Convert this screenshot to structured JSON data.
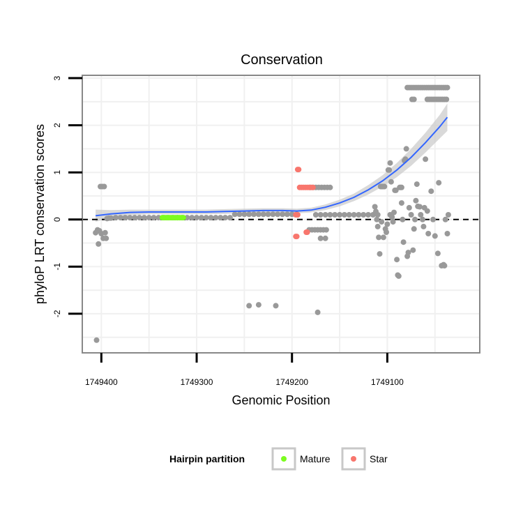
{
  "chart_data": {
    "type": "scatter",
    "title": "Conservation",
    "xlabel": "Genomic Position",
    "ylabel": "phyloP LRT conservation scores",
    "x_reversed": true,
    "xlim": [
      1749420,
      1749003
    ],
    "ylim": [
      -2.83,
      3.06
    ],
    "x_ticks": [
      1749400,
      1749300,
      1749200,
      1749100
    ],
    "x_tick_labels": [
      "1749400",
      "1749300",
      "1749200",
      "1749100"
    ],
    "y_ticks": [
      -2,
      -1,
      0,
      1,
      2,
      3
    ],
    "y_tick_labels": [
      "-2",
      "-1",
      "0",
      "1",
      "2",
      "3"
    ],
    "reference_line_y": 0,
    "colors": {
      "other": "#999999",
      "mature": "#7cfc1f",
      "star": "#f8766d",
      "smooth": "#3366ff",
      "ribbon": "#cccccc",
      "panel_border": "#888888",
      "grid": "#f0f0f0"
    },
    "legend": {
      "title": "Hairpin partition",
      "position": "bottom",
      "entries": [
        {
          "label": "Mature",
          "color": "#7cfc1f"
        },
        {
          "label": "Star",
          "color": "#f8766d"
        }
      ]
    },
    "series": [
      {
        "name": "Other",
        "points": [
          [
            1749405,
            -2.56
          ],
          [
            1749406,
            -0.28
          ],
          [
            1749404,
            -0.22
          ],
          [
            1749403,
            -0.52
          ],
          [
            1749402,
            -0.24
          ],
          [
            1749401,
            0.7
          ],
          [
            1749399,
            0.7
          ],
          [
            1749397,
            0.7
          ],
          [
            1749400,
            -0.3
          ],
          [
            1749398,
            -0.4
          ],
          [
            1749396,
            -0.28
          ],
          [
            1749395,
            -0.4
          ],
          [
            1749394,
            0.02
          ],
          [
            1749392,
            0.03
          ],
          [
            1749390,
            0.03
          ],
          [
            1749385,
            0.04
          ],
          [
            1749380,
            0.04
          ],
          [
            1749375,
            0.04
          ],
          [
            1749370,
            0.04
          ],
          [
            1749365,
            0.04
          ],
          [
            1749360,
            0.04
          ],
          [
            1749355,
            0.04
          ],
          [
            1749350,
            0.04
          ],
          [
            1749345,
            0.04
          ],
          [
            1749340,
            0.04
          ],
          [
            1749335,
            0.04
          ],
          [
            1749330,
            0.04
          ],
          [
            1749325,
            0.04
          ],
          [
            1749320,
            0.04
          ],
          [
            1749315,
            0.04
          ],
          [
            1749310,
            0.04
          ],
          [
            1749305,
            0.04
          ],
          [
            1749300,
            0.04
          ],
          [
            1749295,
            0.04
          ],
          [
            1749290,
            0.04
          ],
          [
            1749285,
            0.04
          ],
          [
            1749280,
            0.04
          ],
          [
            1749275,
            0.04
          ],
          [
            1749270,
            0.04
          ],
          [
            1749265,
            0.04
          ],
          [
            1749260,
            0.11
          ],
          [
            1749255,
            0.11
          ],
          [
            1749250,
            0.11
          ],
          [
            1749245,
            0.11
          ],
          [
            1749240,
            0.11
          ],
          [
            1749235,
            0.11
          ],
          [
            1749230,
            0.11
          ],
          [
            1749225,
            0.11
          ],
          [
            1749220,
            0.11
          ],
          [
            1749215,
            0.11
          ],
          [
            1749210,
            0.11
          ],
          [
            1749205,
            0.11
          ],
          [
            1749200,
            0.11
          ],
          [
            1749195,
            0.11
          ],
          [
            1749245,
            -1.83
          ],
          [
            1749235,
            -1.81
          ],
          [
            1749217,
            -1.83
          ],
          [
            1749173,
            -1.97
          ],
          [
            1749181,
            0.68
          ],
          [
            1749178,
            0.68
          ],
          [
            1749175,
            0.68
          ],
          [
            1749172,
            0.68
          ],
          [
            1749169,
            0.68
          ],
          [
            1749166,
            0.68
          ],
          [
            1749163,
            0.68
          ],
          [
            1749160,
            0.68
          ],
          [
            1749182,
            -0.22
          ],
          [
            1749179,
            -0.22
          ],
          [
            1749176,
            -0.22
          ],
          [
            1749173,
            -0.22
          ],
          [
            1749170,
            -0.22
          ],
          [
            1749167,
            -0.22
          ],
          [
            1749164,
            -0.22
          ],
          [
            1749170,
            -0.4
          ],
          [
            1749165,
            -0.4
          ],
          [
            1749175,
            0.1
          ],
          [
            1749170,
            0.1
          ],
          [
            1749165,
            0.1
          ],
          [
            1749160,
            0.1
          ],
          [
            1749155,
            0.1
          ],
          [
            1749150,
            0.1
          ],
          [
            1749145,
            0.1
          ],
          [
            1749140,
            0.1
          ],
          [
            1749135,
            0.1
          ],
          [
            1749130,
            0.1
          ],
          [
            1749125,
            0.1
          ],
          [
            1749120,
            0.1
          ],
          [
            1749115,
            0.1
          ],
          [
            1749110,
            0.1
          ],
          [
            1749113,
            0.27
          ],
          [
            1749112,
            0.17
          ],
          [
            1749111,
            0.0
          ],
          [
            1749110,
            -0.15
          ],
          [
            1749109,
            -0.38
          ],
          [
            1749108,
            -0.73
          ],
          [
            1749107,
            0.7
          ],
          [
            1749106,
            0.7
          ],
          [
            1749105,
            0.7
          ],
          [
            1749104,
            0.7
          ],
          [
            1749103,
            0.7
          ],
          [
            1749106,
            -0.05
          ],
          [
            1749104,
            -0.38
          ],
          [
            1749102,
            -0.2
          ],
          [
            1749101,
            -0.27
          ],
          [
            1749100,
            -0.1
          ],
          [
            1749099,
            1.05
          ],
          [
            1749098,
            1.05
          ],
          [
            1749097,
            1.2
          ],
          [
            1749097,
            0.1
          ],
          [
            1749096,
            0.8
          ],
          [
            1749095,
            0.05
          ],
          [
            1749094,
            -0.05
          ],
          [
            1749093,
            0.15
          ],
          [
            1749092,
            0.62
          ],
          [
            1749091,
            0.62
          ],
          [
            1749090,
            -0.85
          ],
          [
            1749089,
            -1.18
          ],
          [
            1749088,
            -1.2
          ],
          [
            1749087,
            0.68
          ],
          [
            1749086,
            0.68
          ],
          [
            1749085,
            0.68
          ],
          [
            1749085,
            0.35
          ],
          [
            1749084,
            0.0
          ],
          [
            1749083,
            -0.48
          ],
          [
            1749082,
            1.25
          ],
          [
            1749081,
            1.28
          ],
          [
            1749080,
            1.5
          ],
          [
            1749079,
            -0.78
          ],
          [
            1749078,
            -0.7
          ],
          [
            1749077,
            0.25
          ],
          [
            1749075,
            0.1
          ],
          [
            1749073,
            -0.65
          ],
          [
            1749072,
            -0.2
          ],
          [
            1749071,
            0.0
          ],
          [
            1749070,
            0.4
          ],
          [
            1749069,
            0.75
          ],
          [
            1749068,
            0.28
          ],
          [
            1749066,
            0.27
          ],
          [
            1749065,
            0.1
          ],
          [
            1749063,
            0.0
          ],
          [
            1749062,
            -0.15
          ],
          [
            1749061,
            0.25
          ],
          [
            1749060,
            1.28
          ],
          [
            1749058,
            0.18
          ],
          [
            1749057,
            -0.3
          ],
          [
            1749054,
            0.6
          ],
          [
            1749052,
            0.0
          ],
          [
            1749050,
            -0.35
          ],
          [
            1749047,
            -0.72
          ],
          [
            1749046,
            0.78
          ],
          [
            1749043,
            -0.98
          ],
          [
            1749041,
            -0.96
          ],
          [
            1749040,
            -0.98
          ],
          [
            1749039,
            0.0
          ],
          [
            1749037,
            -0.3
          ],
          [
            1749036,
            0.1
          ],
          [
            1749079,
            2.8
          ],
          [
            1749077,
            2.8
          ],
          [
            1749075,
            2.8
          ],
          [
            1749073,
            2.8
          ],
          [
            1749071,
            2.8
          ],
          [
            1749069,
            2.8
          ],
          [
            1749067,
            2.8
          ],
          [
            1749065,
            2.8
          ],
          [
            1749063,
            2.8
          ],
          [
            1749061,
            2.8
          ],
          [
            1749059,
            2.8
          ],
          [
            1749057,
            2.8
          ],
          [
            1749055,
            2.8
          ],
          [
            1749053,
            2.8
          ],
          [
            1749051,
            2.8
          ],
          [
            1749049,
            2.8
          ],
          [
            1749047,
            2.8
          ],
          [
            1749045,
            2.8
          ],
          [
            1749043,
            2.8
          ],
          [
            1749041,
            2.8
          ],
          [
            1749039,
            2.8
          ],
          [
            1749037,
            2.8
          ],
          [
            1749074,
            2.55
          ],
          [
            1749072,
            2.55
          ],
          [
            1749058,
            2.55
          ],
          [
            1749056,
            2.55
          ],
          [
            1749054,
            2.55
          ],
          [
            1749052,
            2.55
          ],
          [
            1749050,
            2.55
          ],
          [
            1749048,
            2.55
          ],
          [
            1749046,
            2.55
          ],
          [
            1749044,
            2.55
          ],
          [
            1749042,
            2.55
          ],
          [
            1749040,
            2.55
          ],
          [
            1749038,
            2.55
          ]
        ]
      },
      {
        "name": "Mature",
        "points": [
          [
            1749336,
            0.04
          ],
          [
            1749334,
            0.04
          ],
          [
            1749332,
            0.04
          ],
          [
            1749330,
            0.04
          ],
          [
            1749328,
            0.04
          ],
          [
            1749326,
            0.04
          ],
          [
            1749324,
            0.04
          ],
          [
            1749322,
            0.04
          ],
          [
            1749320,
            0.04
          ],
          [
            1749318,
            0.04
          ],
          [
            1749316,
            0.04
          ],
          [
            1749314,
            0.04
          ]
        ]
      },
      {
        "name": "Star",
        "points": [
          [
            1749194,
            1.06
          ],
          [
            1749193,
            1.06
          ],
          [
            1749192,
            0.68
          ],
          [
            1749190,
            0.68
          ],
          [
            1749188,
            0.68
          ],
          [
            1749186,
            0.68
          ],
          [
            1749184,
            0.68
          ],
          [
            1749182,
            0.68
          ],
          [
            1749180,
            0.68
          ],
          [
            1749178,
            0.68
          ],
          [
            1749196,
            0.1
          ],
          [
            1749194,
            0.1
          ],
          [
            1749196,
            -0.36
          ],
          [
            1749195,
            -0.36
          ],
          [
            1749185,
            -0.27
          ],
          [
            1749184,
            -0.27
          ]
        ]
      }
    ],
    "smooth": {
      "x": [
        1749406,
        1749390,
        1749370,
        1749350,
        1749330,
        1749310,
        1749290,
        1749270,
        1749250,
        1749230,
        1749210,
        1749195,
        1749180,
        1749165,
        1749150,
        1749135,
        1749120,
        1749105,
        1749090,
        1749075,
        1749060,
        1749045,
        1749037
      ],
      "y": [
        0.08,
        0.12,
        0.15,
        0.16,
        0.16,
        0.16,
        0.16,
        0.17,
        0.18,
        0.19,
        0.19,
        0.18,
        0.2,
        0.26,
        0.35,
        0.47,
        0.63,
        0.82,
        1.05,
        1.32,
        1.63,
        1.97,
        2.17
      ],
      "ci_lower": [
        -0.05,
        0.04,
        0.09,
        0.11,
        0.11,
        0.11,
        0.11,
        0.12,
        0.13,
        0.14,
        0.14,
        0.13,
        0.15,
        0.2,
        0.28,
        0.39,
        0.53,
        0.7,
        0.9,
        1.14,
        1.42,
        1.72,
        1.88
      ],
      "ci_upper": [
        0.21,
        0.2,
        0.21,
        0.21,
        0.21,
        0.21,
        0.21,
        0.22,
        0.23,
        0.24,
        0.24,
        0.23,
        0.25,
        0.32,
        0.42,
        0.55,
        0.73,
        0.94,
        1.2,
        1.5,
        1.84,
        2.22,
        2.46
      ]
    }
  }
}
